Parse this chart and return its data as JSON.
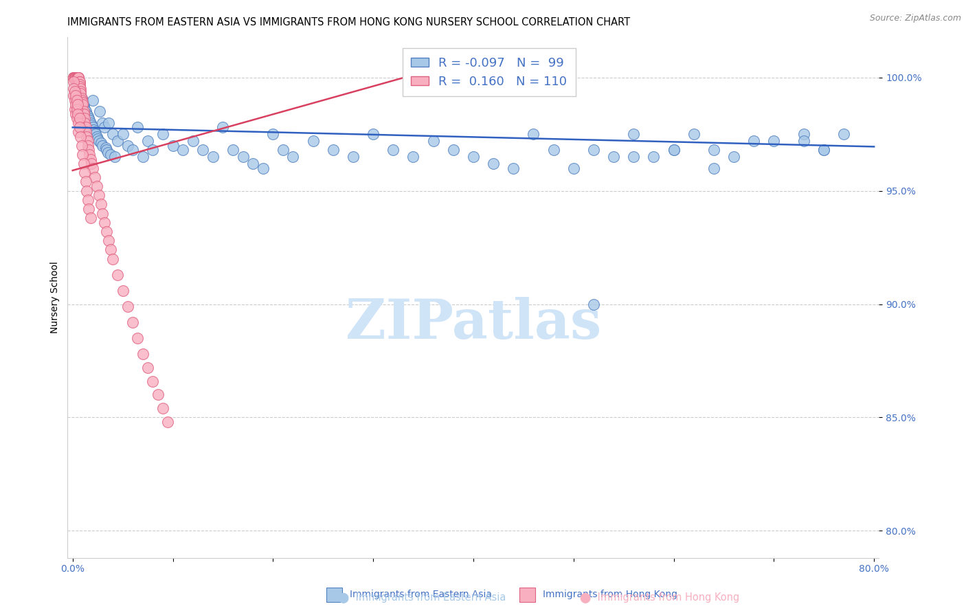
{
  "title": "IMMIGRANTS FROM EASTERN ASIA VS IMMIGRANTS FROM HONG KONG NURSERY SCHOOL CORRELATION CHART",
  "source": "Source: ZipAtlas.com",
  "ylabel": "Nursery School",
  "xlim_min": -0.005,
  "xlim_max": 0.805,
  "ylim_min": 0.788,
  "ylim_max": 1.018,
  "xtick_positions": [
    0.0,
    0.1,
    0.2,
    0.3,
    0.4,
    0.5,
    0.6,
    0.7,
    0.8
  ],
  "xticklabels": [
    "0.0%",
    "",
    "",
    "",
    "",
    "",
    "",
    "",
    "80.0%"
  ],
  "ytick_positions": [
    0.8,
    0.85,
    0.9,
    0.95,
    1.0
  ],
  "ytick_labels": [
    "80.0%",
    "85.0%",
    "90.0%",
    "95.0%",
    "100.0%"
  ],
  "color_blue_fill": "#A8C8E8",
  "color_blue_edge": "#5080C0",
  "color_pink_fill": "#F8B0C0",
  "color_pink_edge": "#E06080",
  "color_line_blue": "#3060C0",
  "color_line_pink": "#D84060",
  "watermark_text": "ZIPatlas",
  "watermark_color": "#D0E4F8",
  "title_fontsize": 10.5,
  "tick_fontsize": 10,
  "source_fontsize": 9,
  "legend_label1": "R = -0.097   N =  99",
  "legend_label2": "R =  0.160   N = 110",
  "blue_trend_x0": 0.0,
  "blue_trend_x1": 0.8,
  "blue_trend_y0": 0.978,
  "blue_trend_y1": 0.9695,
  "pink_trend_x0": 0.0,
  "pink_trend_x1": 0.355,
  "pink_trend_y0": 0.959,
  "pink_trend_y1": 1.003,
  "blue_scatter_x": [
    0.003,
    0.004,
    0.005,
    0.005,
    0.006,
    0.006,
    0.007,
    0.007,
    0.008,
    0.008,
    0.009,
    0.009,
    0.01,
    0.01,
    0.011,
    0.011,
    0.012,
    0.013,
    0.014,
    0.015,
    0.016,
    0.017,
    0.018,
    0.019,
    0.02,
    0.02,
    0.021,
    0.022,
    0.023,
    0.024,
    0.025,
    0.026,
    0.027,
    0.028,
    0.03,
    0.03,
    0.032,
    0.033,
    0.034,
    0.035,
    0.036,
    0.038,
    0.04,
    0.042,
    0.045,
    0.05,
    0.055,
    0.06,
    0.065,
    0.07,
    0.075,
    0.08,
    0.09,
    0.1,
    0.11,
    0.12,
    0.13,
    0.14,
    0.15,
    0.16,
    0.17,
    0.18,
    0.19,
    0.2,
    0.21,
    0.22,
    0.24,
    0.26,
    0.28,
    0.3,
    0.32,
    0.34,
    0.36,
    0.38,
    0.4,
    0.42,
    0.44,
    0.46,
    0.48,
    0.5,
    0.52,
    0.54,
    0.56,
    0.58,
    0.6,
    0.62,
    0.64,
    0.66,
    0.7,
    0.73,
    0.75,
    0.77,
    0.75,
    0.73,
    0.68,
    0.64,
    0.6,
    0.56,
    0.52
  ],
  "blue_scatter_y": [
    0.998,
    0.997,
    0.998,
    0.996,
    0.995,
    0.994,
    0.996,
    0.994,
    0.993,
    0.992,
    0.991,
    0.99,
    0.99,
    0.989,
    0.988,
    0.987,
    0.986,
    0.985,
    0.984,
    0.983,
    0.982,
    0.981,
    0.98,
    0.979,
    0.978,
    0.99,
    0.977,
    0.976,
    0.975,
    0.974,
    0.973,
    0.972,
    0.985,
    0.971,
    0.98,
    0.97,
    0.978,
    0.969,
    0.968,
    0.967,
    0.98,
    0.966,
    0.975,
    0.965,
    0.972,
    0.975,
    0.97,
    0.968,
    0.978,
    0.965,
    0.972,
    0.968,
    0.975,
    0.97,
    0.968,
    0.972,
    0.968,
    0.965,
    0.978,
    0.968,
    0.965,
    0.962,
    0.96,
    0.975,
    0.968,
    0.965,
    0.972,
    0.968,
    0.965,
    0.975,
    0.968,
    0.965,
    0.972,
    0.968,
    0.965,
    0.962,
    0.96,
    0.975,
    0.968,
    0.96,
    0.968,
    0.965,
    0.975,
    0.965,
    0.968,
    0.975,
    0.968,
    0.965,
    0.972,
    0.975,
    0.968,
    0.975,
    0.968,
    0.972,
    0.972,
    0.96,
    0.968,
    0.965,
    0.9
  ],
  "pink_scatter_x": [
    0.001,
    0.001,
    0.001,
    0.001,
    0.001,
    0.001,
    0.002,
    0.002,
    0.002,
    0.002,
    0.002,
    0.002,
    0.002,
    0.002,
    0.003,
    0.003,
    0.003,
    0.003,
    0.003,
    0.003,
    0.003,
    0.004,
    0.004,
    0.004,
    0.004,
    0.004,
    0.005,
    0.005,
    0.005,
    0.005,
    0.005,
    0.005,
    0.006,
    0.006,
    0.006,
    0.006,
    0.007,
    0.007,
    0.007,
    0.007,
    0.008,
    0.008,
    0.008,
    0.009,
    0.009,
    0.01,
    0.01,
    0.011,
    0.011,
    0.012,
    0.012,
    0.013,
    0.013,
    0.014,
    0.015,
    0.015,
    0.016,
    0.017,
    0.018,
    0.019,
    0.02,
    0.022,
    0.024,
    0.026,
    0.028,
    0.03,
    0.032,
    0.034,
    0.036,
    0.038,
    0.04,
    0.045,
    0.05,
    0.055,
    0.06,
    0.065,
    0.07,
    0.075,
    0.08,
    0.085,
    0.09,
    0.095,
    0.001,
    0.001,
    0.001,
    0.002,
    0.002,
    0.002,
    0.003,
    0.003,
    0.003,
    0.004,
    0.004,
    0.004,
    0.005,
    0.005,
    0.006,
    0.006,
    0.007,
    0.007,
    0.008,
    0.009,
    0.01,
    0.011,
    0.012,
    0.013,
    0.014,
    0.015,
    0.016,
    0.018
  ],
  "pink_scatter_y": [
    1.0,
    1.0,
    1.0,
    1.0,
    1.0,
    1.0,
    1.0,
    1.0,
    1.0,
    1.0,
    1.0,
    1.0,
    1.0,
    1.0,
    1.0,
    1.0,
    1.0,
    1.0,
    1.0,
    1.0,
    1.0,
    1.0,
    1.0,
    1.0,
    1.0,
    1.0,
    1.0,
    1.0,
    1.0,
    1.0,
    1.0,
    1.0,
    1.0,
    1.0,
    1.0,
    1.0,
    0.998,
    0.998,
    0.997,
    0.996,
    0.995,
    0.994,
    0.993,
    0.991,
    0.99,
    0.989,
    0.988,
    0.985,
    0.984,
    0.982,
    0.98,
    0.978,
    0.976,
    0.974,
    0.972,
    0.97,
    0.968,
    0.966,
    0.964,
    0.962,
    0.96,
    0.956,
    0.952,
    0.948,
    0.944,
    0.94,
    0.936,
    0.932,
    0.928,
    0.924,
    0.92,
    0.913,
    0.906,
    0.899,
    0.892,
    0.885,
    0.878,
    0.872,
    0.866,
    0.86,
    0.854,
    0.848,
    0.998,
    0.995,
    0.992,
    0.994,
    0.99,
    0.986,
    0.992,
    0.988,
    0.984,
    0.99,
    0.986,
    0.982,
    0.988,
    0.984,
    0.98,
    0.976,
    0.982,
    0.978,
    0.974,
    0.97,
    0.966,
    0.962,
    0.958,
    0.954,
    0.95,
    0.946,
    0.942,
    0.938
  ]
}
